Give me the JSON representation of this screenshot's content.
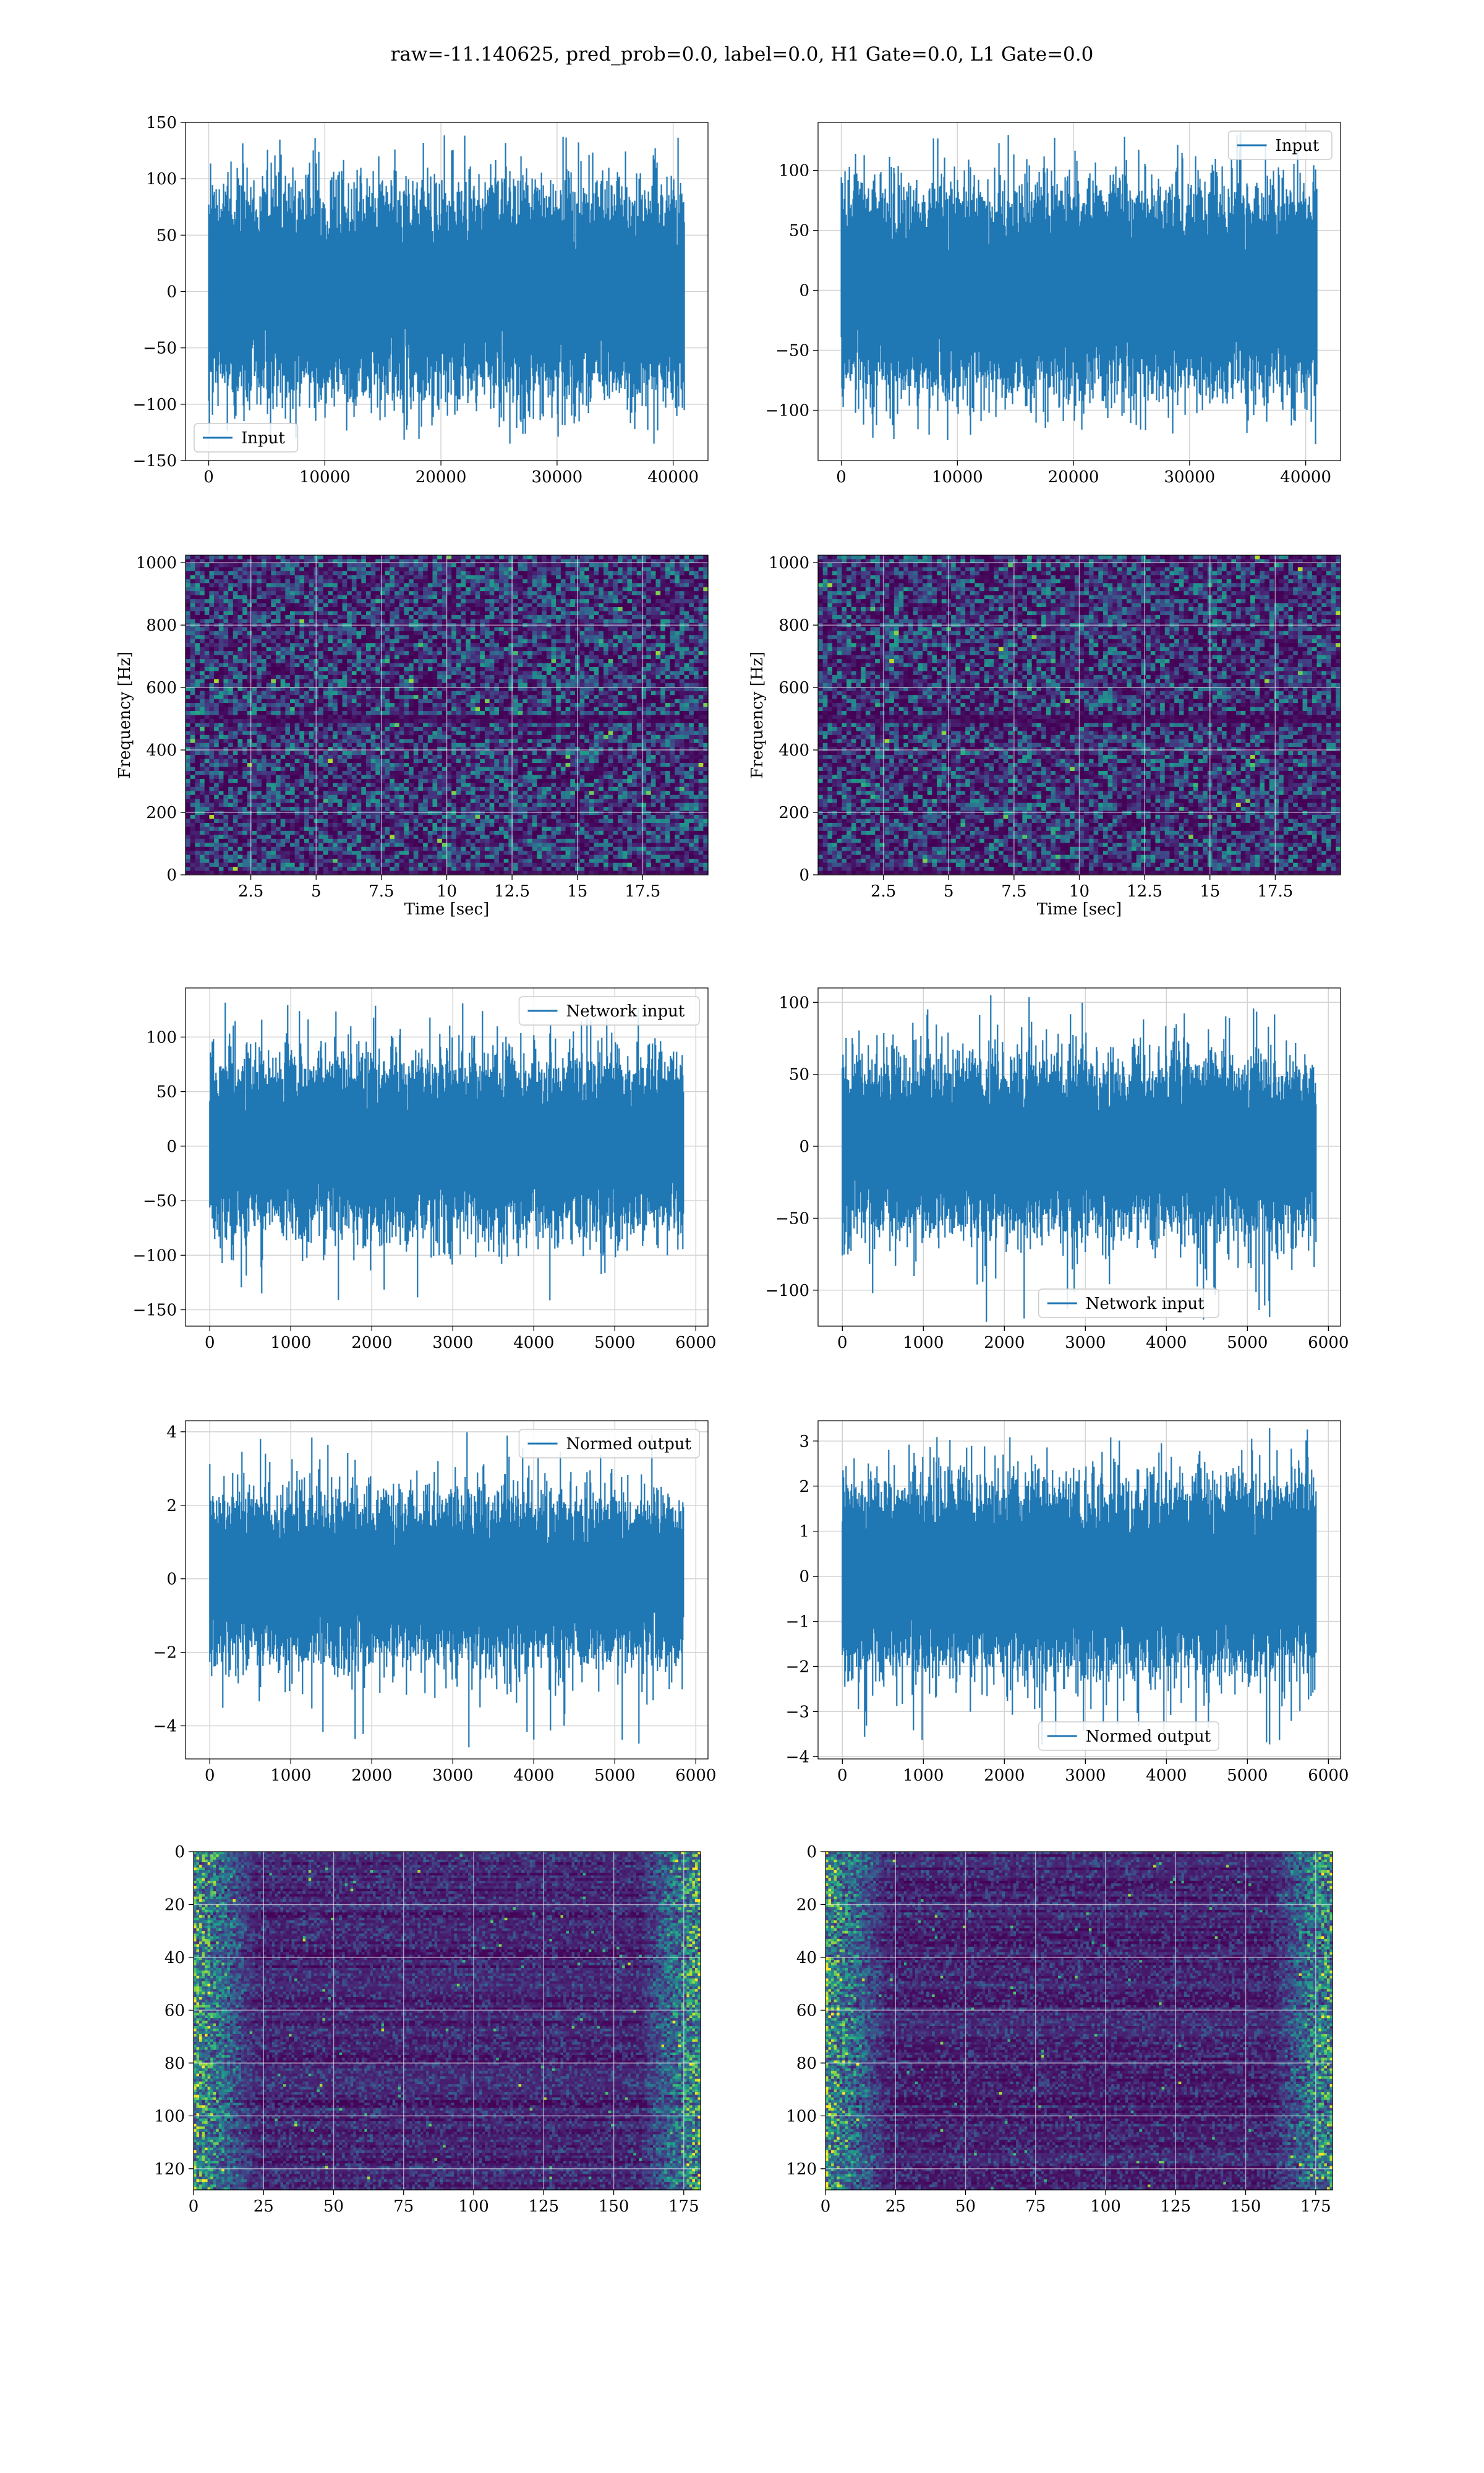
{
  "figure": {
    "title": "raw=-11.140625, pred_prob=0.0, label=0.0, H1 Gate=0.0, L1 Gate=0.0"
  },
  "colors": {
    "series": "#1f77b4",
    "grid": "#d3d3d3",
    "heat_low": "#440154",
    "heat_high": "#fde725"
  },
  "chart_data": [
    {
      "id": "raw-h1",
      "type": "line",
      "title": "",
      "xlabel": "",
      "ylabel": "",
      "xlim": [
        -2000,
        43000
      ],
      "ylim": [
        -150,
        150
      ],
      "xticks": [
        0,
        10000,
        20000,
        30000,
        40000
      ],
      "yticks": [
        -150,
        -100,
        -50,
        0,
        50,
        100,
        150
      ],
      "grid": true,
      "legend": "lower-left",
      "series": [
        {
          "name": "Input",
          "x_range": [
            0,
            40959
          ],
          "typical_envelope": [
            -70,
            70
          ],
          "peak_range": [
            -135,
            140
          ]
        }
      ]
    },
    {
      "id": "raw-l1",
      "type": "line",
      "title": "",
      "xlabel": "",
      "ylabel": "",
      "xlim": [
        -2000,
        43000
      ],
      "ylim": [
        -142,
        140
      ],
      "xticks": [
        0,
        10000,
        20000,
        30000,
        40000
      ],
      "yticks": [
        -100,
        -50,
        0,
        50,
        100
      ],
      "grid": true,
      "legend": "upper-right",
      "series": [
        {
          "name": "Input",
          "x_range": [
            0,
            40959
          ],
          "typical_envelope": [
            -65,
            65
          ],
          "peak_range": [
            -130,
            132
          ]
        }
      ]
    },
    {
      "id": "spec-h1",
      "type": "heatmap",
      "title": "",
      "xlabel": "Time [sec]",
      "ylabel": "Frequency [Hz]",
      "xlim": [
        0,
        20
      ],
      "ylim": [
        0,
        1024
      ],
      "xticks": [
        2.5,
        5.0,
        7.5,
        10.0,
        12.5,
        15.0,
        17.5
      ],
      "yticks": [
        0,
        200,
        400,
        600,
        800,
        1000
      ],
      "grid": true,
      "colormap": "viridis"
    },
    {
      "id": "spec-l1",
      "type": "heatmap",
      "title": "",
      "xlabel": "Time [sec]",
      "ylabel": "Frequency [Hz]",
      "xlim": [
        0,
        20
      ],
      "ylim": [
        0,
        1024
      ],
      "xticks": [
        2.5,
        5.0,
        7.5,
        10.0,
        12.5,
        15.0,
        17.5
      ],
      "yticks": [
        0,
        200,
        400,
        600,
        800,
        1000
      ],
      "grid": true,
      "colormap": "viridis"
    },
    {
      "id": "net-h1",
      "type": "line",
      "title": "",
      "xlabel": "",
      "ylabel": "",
      "xlim": [
        -300,
        6150
      ],
      "ylim": [
        -165,
        145
      ],
      "xticks": [
        0,
        1000,
        2000,
        3000,
        4000,
        5000,
        6000
      ],
      "yticks": [
        -150,
        -100,
        -50,
        0,
        50,
        100
      ],
      "grid": true,
      "legend": "upper-right",
      "series": [
        {
          "name": "Network input",
          "x_range": [
            0,
            5850
          ],
          "typical_envelope": [
            -60,
            60
          ],
          "peak_range": [
            -150,
            135
          ]
        }
      ]
    },
    {
      "id": "net-l1",
      "type": "line",
      "title": "",
      "xlabel": "",
      "ylabel": "",
      "xlim": [
        -300,
        6150
      ],
      "ylim": [
        -125,
        110
      ],
      "xticks": [
        0,
        1000,
        2000,
        3000,
        4000,
        5000,
        6000
      ],
      "yticks": [
        -100,
        -50,
        0,
        50,
        100
      ],
      "grid": true,
      "legend": "lower-center",
      "series": [
        {
          "name": "Network input",
          "x_range": [
            0,
            5850
          ],
          "typical_envelope": [
            -45,
            45
          ],
          "peak_range": [
            -122,
            105
          ]
        }
      ]
    },
    {
      "id": "norm-h1",
      "type": "line",
      "title": "",
      "xlabel": "",
      "ylabel": "",
      "xlim": [
        -300,
        6150
      ],
      "ylim": [
        -4.9,
        4.3
      ],
      "xticks": [
        0,
        1000,
        2000,
        3000,
        4000,
        5000,
        6000
      ],
      "yticks": [
        -4,
        -2,
        0,
        2,
        4
      ],
      "grid": true,
      "legend": "upper-right",
      "series": [
        {
          "name": "Normed output",
          "x_range": [
            0,
            5850
          ],
          "typical_envelope": [
            -1.7,
            1.7
          ],
          "peak_range": [
            -4.6,
            4.1
          ]
        }
      ]
    },
    {
      "id": "norm-l1",
      "type": "line",
      "title": "",
      "xlabel": "",
      "ylabel": "",
      "xlim": [
        -300,
        6150
      ],
      "ylim": [
        -4.05,
        3.45
      ],
      "xticks": [
        0,
        1000,
        2000,
        3000,
        4000,
        5000,
        6000
      ],
      "yticks": [
        -4,
        -3,
        -2,
        -1,
        0,
        1,
        2,
        3
      ],
      "grid": true,
      "legend": "lower-center",
      "series": [
        {
          "name": "Normed output",
          "x_range": [
            0,
            5850
          ],
          "typical_envelope": [
            -1.6,
            1.6
          ],
          "peak_range": [
            -3.8,
            3.3
          ]
        }
      ]
    },
    {
      "id": "feat-h1",
      "type": "heatmap",
      "title": "",
      "xlabel": "",
      "ylabel": "",
      "xlim": [
        0,
        181
      ],
      "ylim": [
        128,
        0
      ],
      "xticks": [
        0,
        25,
        50,
        75,
        100,
        125,
        150,
        175
      ],
      "yticks": [
        0,
        20,
        40,
        60,
        80,
        100,
        120
      ],
      "grid": true,
      "colormap": "viridis"
    },
    {
      "id": "feat-l1",
      "type": "heatmap",
      "title": "",
      "xlabel": "",
      "ylabel": "",
      "xlim": [
        0,
        181
      ],
      "ylim": [
        128,
        0
      ],
      "xticks": [
        0,
        25,
        50,
        75,
        100,
        125,
        150,
        175
      ],
      "yticks": [
        0,
        20,
        40,
        60,
        80,
        100,
        120
      ],
      "grid": true,
      "colormap": "viridis"
    }
  ]
}
